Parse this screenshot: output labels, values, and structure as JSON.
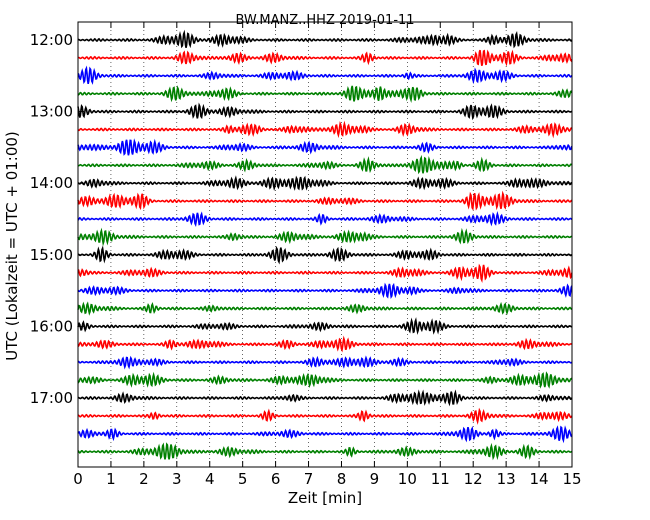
{
  "chart_data": {
    "type": "line",
    "title": "BW.MANZ..HHZ 2019-01-11",
    "xlabel": "Zeit  [min]",
    "ylabel": "UTC (Lokalzeit = UTC + 01:00)",
    "xlim": [
      0,
      15
    ],
    "x_ticks": [
      "0",
      "1",
      "2",
      "3",
      "4",
      "5",
      "6",
      "7",
      "8",
      "9",
      "10",
      "11",
      "12",
      "13",
      "14",
      "15"
    ],
    "y_ticks": [
      "12:00",
      "13:00",
      "14:00",
      "15:00",
      "16:00",
      "17:00"
    ],
    "grid": true,
    "trace_colors": [
      "#000000",
      "#ff0000",
      "#0000ff",
      "#008000"
    ],
    "traces_per_hour": 4,
    "trace_count": 24
  }
}
